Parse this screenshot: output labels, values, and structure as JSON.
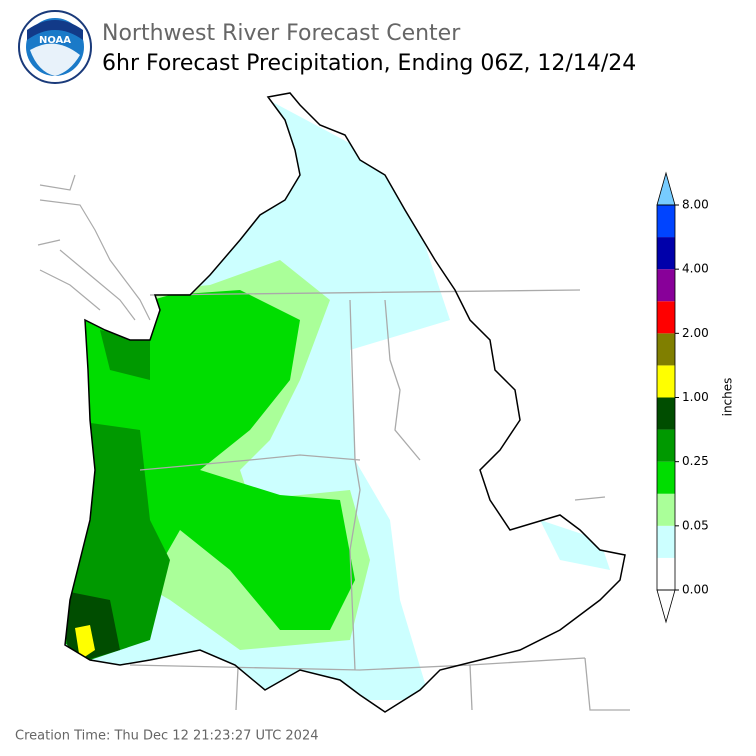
{
  "header": {
    "logo": "NOAA",
    "org": "Northwest River Forecast Center",
    "title": "6hr Forecast Precipitation, Ending 06Z, 12/14/24"
  },
  "colorbar": {
    "label": "inches",
    "colors": [
      "#ffffff",
      "#ccffff",
      "#aaff99",
      "#00dd00",
      "#009900",
      "#004d00",
      "#ffff00",
      "#807f00",
      "#ff0000",
      "#880099",
      "#0000aa",
      "#0044ff"
    ],
    "under_color": "#ffffff",
    "over_color": "#77ccff",
    "ticks": [
      {
        "value": 0,
        "label": "0.00"
      },
      {
        "value": 0.05,
        "label": "0.05"
      },
      {
        "value": 0.25,
        "label": "0.25"
      },
      {
        "value": 1,
        "label": "1.00"
      },
      {
        "value": 2,
        "label": "2.00"
      },
      {
        "value": 4,
        "label": "4.00"
      },
      {
        "value": 8,
        "label": "8.00"
      }
    ]
  },
  "footer": "Creation Time: Thu Dec 12 21:23:27 UTC 2024"
}
